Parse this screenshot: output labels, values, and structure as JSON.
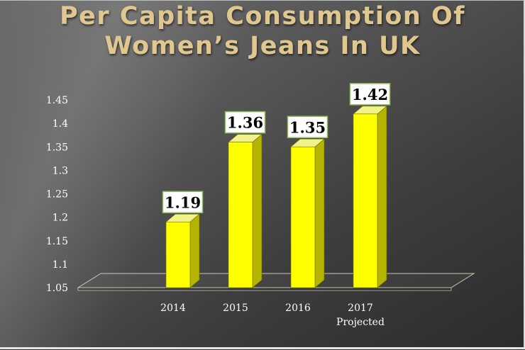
{
  "title_lines": [
    "Per Capita Consumption Of",
    "Women’s Jeans In UK"
  ],
  "colors": {
    "bar_front": "#ffff00",
    "bar_side": "#b5b500",
    "bar_top": "#f2f28a",
    "title": "#e0c790",
    "label_box_border": "#8fbf5a"
  },
  "chart_data": {
    "type": "bar",
    "categories": [
      "2014",
      "2015",
      "2016",
      "2017"
    ],
    "category_sublabels": [
      "",
      "",
      "",
      "Projected"
    ],
    "values": [
      1.19,
      1.36,
      1.35,
      1.42
    ],
    "data_labels": [
      "1.19",
      "1.36",
      "1.35",
      "1.42"
    ],
    "title": "Per Capita Consumption Of Women’s Jeans In UK",
    "xlabel": "",
    "ylabel": "",
    "ylim": [
      1.05,
      1.45
    ],
    "yticks": [
      "1.05",
      "1.1",
      "1.15",
      "1.2",
      "1.25",
      "1.3",
      "1.35",
      "1.4",
      "1.45"
    ],
    "ytick_values": [
      1.05,
      1.1,
      1.15,
      1.2,
      1.25,
      1.3,
      1.35,
      1.4,
      1.45
    ],
    "grid": false,
    "style": "3d-column"
  }
}
